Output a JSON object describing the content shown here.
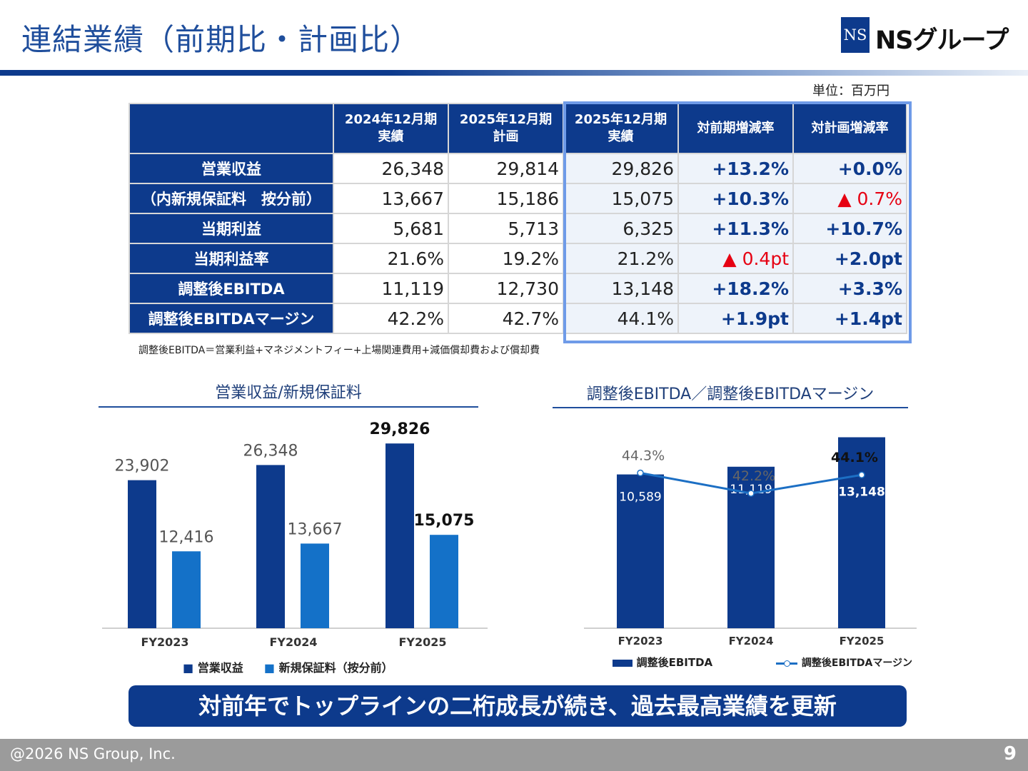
{
  "header": {
    "title": "連結業績（前期比・計画比）",
    "logo_mark": "NS",
    "logo_text": "NSグループ"
  },
  "unit": "単位：百万円",
  "table": {
    "columns": [
      "",
      "2024年12月期\n実績",
      "2025年12月期\n計画",
      "2025年12月期\n実績",
      "対前期増減率",
      "対計画増減率"
    ],
    "rows": [
      {
        "label": "営業収益",
        "fy2024": "26,348",
        "plan2025": "29,814",
        "fy2025": "29,826",
        "yoy": "+13.2%",
        "yoy_neg": false,
        "vs_plan": "+0.0%",
        "vs_plan_neg": false
      },
      {
        "label": "（内新規保証料　按分前）",
        "fy2024": "13,667",
        "plan2025": "15,186",
        "fy2025": "15,075",
        "yoy": "+10.3%",
        "yoy_neg": false,
        "vs_plan": "▲ 0.7%",
        "vs_plan_neg": true
      },
      {
        "label": "当期利益",
        "fy2024": "5,681",
        "plan2025": "5,713",
        "fy2025": "6,325",
        "yoy": "+11.3%",
        "yoy_neg": false,
        "vs_plan": "+10.7%",
        "vs_plan_neg": false
      },
      {
        "label": "当期利益率",
        "fy2024": "21.6%",
        "plan2025": "19.2%",
        "fy2025": "21.2%",
        "yoy": "▲ 0.4pt",
        "yoy_neg": true,
        "vs_plan": "+2.0pt",
        "vs_plan_neg": false
      },
      {
        "label": "調整後EBITDA",
        "fy2024": "11,119",
        "plan2025": "12,730",
        "fy2025": "13,148",
        "yoy": "+18.2%",
        "yoy_neg": false,
        "vs_plan": "+3.3%",
        "vs_plan_neg": false
      },
      {
        "label": "調整後EBITDAマージン",
        "fy2024": "42.2%",
        "plan2025": "42.7%",
        "fy2025": "44.1%",
        "yoy": "+1.9pt",
        "yoy_neg": false,
        "vs_plan": "+1.4pt",
        "vs_plan_neg": false
      }
    ]
  },
  "footnote": "調整後EBITDA＝営業利益+マネジメントフィー+上場関連費用+減価償却費および償却費",
  "chart_data": [
    {
      "type": "bar",
      "title": "営業収益/新規保証料",
      "categories": [
        "FY2023",
        "FY2024",
        "FY2025"
      ],
      "series": [
        {
          "name": "営業収益",
          "values": [
            23902,
            26348,
            29826
          ],
          "labels": [
            "23,902",
            "26,348",
            "29,826"
          ],
          "color": "#0d3a8c"
        },
        {
          "name": "新規保証料（按分前）",
          "values": [
            12416,
            13667,
            15075
          ],
          "labels": [
            "12,416",
            "13,667",
            "15,075"
          ],
          "color": "#1471c8"
        }
      ],
      "highlight_last": true,
      "ylim": [
        0,
        34000
      ],
      "legend": "bottom"
    },
    {
      "type": "bar+line",
      "title": "調整後EBITDA／調整後EBITDAマージン",
      "categories": [
        "FY2023",
        "FY2024",
        "FY2025"
      ],
      "series": [
        {
          "name": "調整後EBITDA",
          "type": "bar",
          "values": [
            10589,
            11119,
            13148
          ],
          "labels": [
            "10,589",
            "11,119",
            "13,148"
          ],
          "color": "#0d3a8c"
        },
        {
          "name": "調整後EBITDAマージン",
          "type": "line",
          "values": [
            44.3,
            42.2,
            44.1
          ],
          "labels": [
            "44.3%",
            "42.2%",
            "44.1%"
          ],
          "color": "#1c6fc4"
        }
      ],
      "ylim": [
        0,
        14500
      ],
      "ylim_line": [
        30,
        50
      ],
      "legend": "bottom"
    }
  ],
  "banner": "対前年でトップラインの二桁成長が続き、過去最高業績を更新",
  "footer": {
    "copyright": "@2026 NS Group, Inc.",
    "page": "9"
  }
}
